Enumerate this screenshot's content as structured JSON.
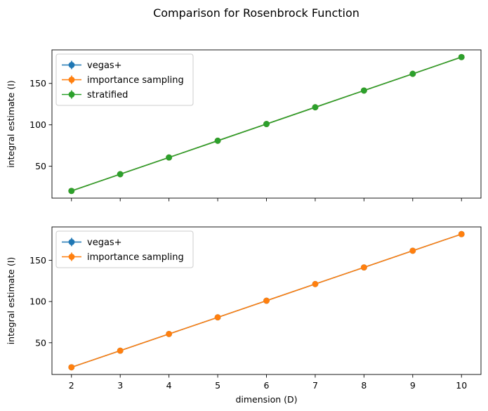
{
  "figure": {
    "title": "Comparison for Rosenbrock Function"
  },
  "colors": {
    "vegas_plus": "#1f77b4",
    "importance_sampling": "#ff7f0e",
    "stratified": "#2ca02c"
  },
  "chart_data": [
    {
      "type": "line",
      "title": "",
      "xlabel": "",
      "ylabel": "integral estimate (I)",
      "x": [
        2,
        3,
        4,
        5,
        6,
        7,
        8,
        9,
        10
      ],
      "xlim": [
        1.6,
        10.4
      ],
      "ylim": [
        11.5,
        190.5
      ],
      "xticks": [
        2,
        3,
        4,
        5,
        6,
        7,
        8,
        9,
        10
      ],
      "show_xtick_labels": false,
      "yticks": [
        50,
        100,
        150
      ],
      "legend": "top-left",
      "grid": false,
      "series": [
        {
          "name": "vegas+",
          "color": "#1f77b4",
          "marker": "circle",
          "errorbars": true,
          "values": [
            20.2,
            40.4,
            60.6,
            80.8,
            101.0,
            121.2,
            141.4,
            161.6,
            181.8
          ]
        },
        {
          "name": "importance sampling",
          "color": "#ff7f0e",
          "marker": "circle",
          "errorbars": true,
          "values": [
            20.2,
            40.4,
            60.6,
            80.8,
            101.0,
            121.2,
            141.4,
            161.6,
            181.8
          ]
        },
        {
          "name": "stratified",
          "color": "#2ca02c",
          "marker": "circle",
          "errorbars": true,
          "values": [
            20.2,
            40.4,
            60.6,
            80.8,
            101.0,
            121.2,
            141.4,
            161.6,
            181.8
          ]
        }
      ]
    },
    {
      "type": "line",
      "title": "",
      "xlabel": "dimension (D)",
      "ylabel": "integral estimate (I)",
      "x": [
        2,
        3,
        4,
        5,
        6,
        7,
        8,
        9,
        10
      ],
      "xlim": [
        1.6,
        10.4
      ],
      "ylim": [
        11.5,
        190.5
      ],
      "xticks": [
        2,
        3,
        4,
        5,
        6,
        7,
        8,
        9,
        10
      ],
      "show_xtick_labels": true,
      "yticks": [
        50,
        100,
        150
      ],
      "legend": "top-left",
      "grid": false,
      "series": [
        {
          "name": "vegas+",
          "color": "#1f77b4",
          "marker": "circle",
          "errorbars": true,
          "values": [
            20.2,
            40.4,
            60.6,
            80.8,
            101.0,
            121.2,
            141.4,
            161.6,
            181.8
          ]
        },
        {
          "name": "importance sampling",
          "color": "#ff7f0e",
          "marker": "circle",
          "errorbars": true,
          "values": [
            20.2,
            40.4,
            60.6,
            80.8,
            101.0,
            121.2,
            141.4,
            161.6,
            181.8
          ]
        }
      ]
    }
  ]
}
